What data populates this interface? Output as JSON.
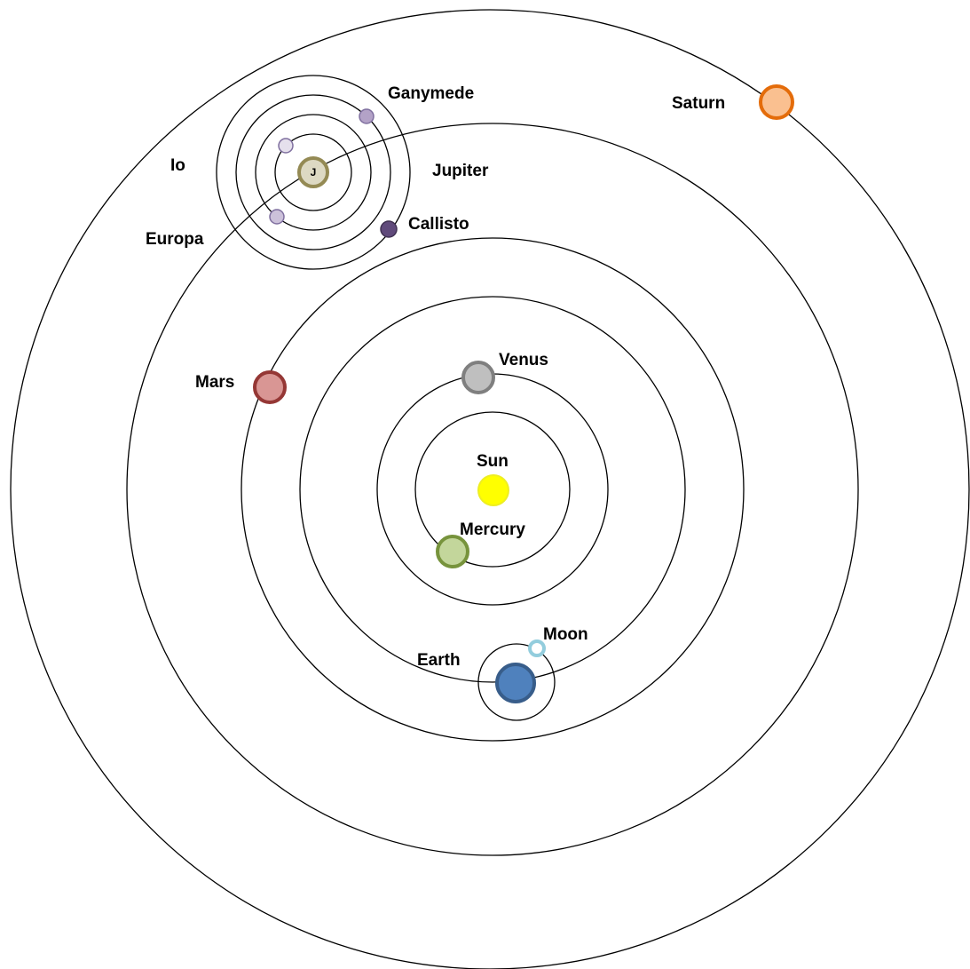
{
  "diagram": {
    "bodies": {
      "sun": {
        "label": "Sun",
        "fill": "#ffff00",
        "stroke": "#eeee22"
      },
      "mercury": {
        "label": "Mercury",
        "fill": "#c3d69b",
        "stroke": "#77933c"
      },
      "venus": {
        "label": "Venus",
        "fill": "#bfbfbf",
        "stroke": "#7f7f7f"
      },
      "earth": {
        "label": "Earth",
        "fill": "#4f81bd",
        "stroke": "#385d8a"
      },
      "moon": {
        "label": "Moon",
        "fill": "#ffffff",
        "stroke": "#93cddd"
      },
      "mars": {
        "label": "Mars",
        "fill": "#d99694",
        "stroke": "#953735"
      },
      "jupiter": {
        "label": "Jupiter",
        "mark": "J",
        "fill": "#ddd9c3",
        "stroke": "#948a54"
      },
      "saturn": {
        "label": "Saturn",
        "fill": "#fac090",
        "stroke": "#e46c0a"
      },
      "io": {
        "label": "Io",
        "fill": "#e5e0ec",
        "stroke": "#7f6f9f"
      },
      "europa": {
        "label": "Europa",
        "fill": "#ccc1da",
        "stroke": "#7f6f9f"
      },
      "ganymede": {
        "label": "Ganymede",
        "fill": "#b3a2c7",
        "stroke": "#7f6f9f"
      },
      "callisto": {
        "label": "Callisto",
        "fill": "#604a7b",
        "stroke": "#403152"
      }
    }
  }
}
